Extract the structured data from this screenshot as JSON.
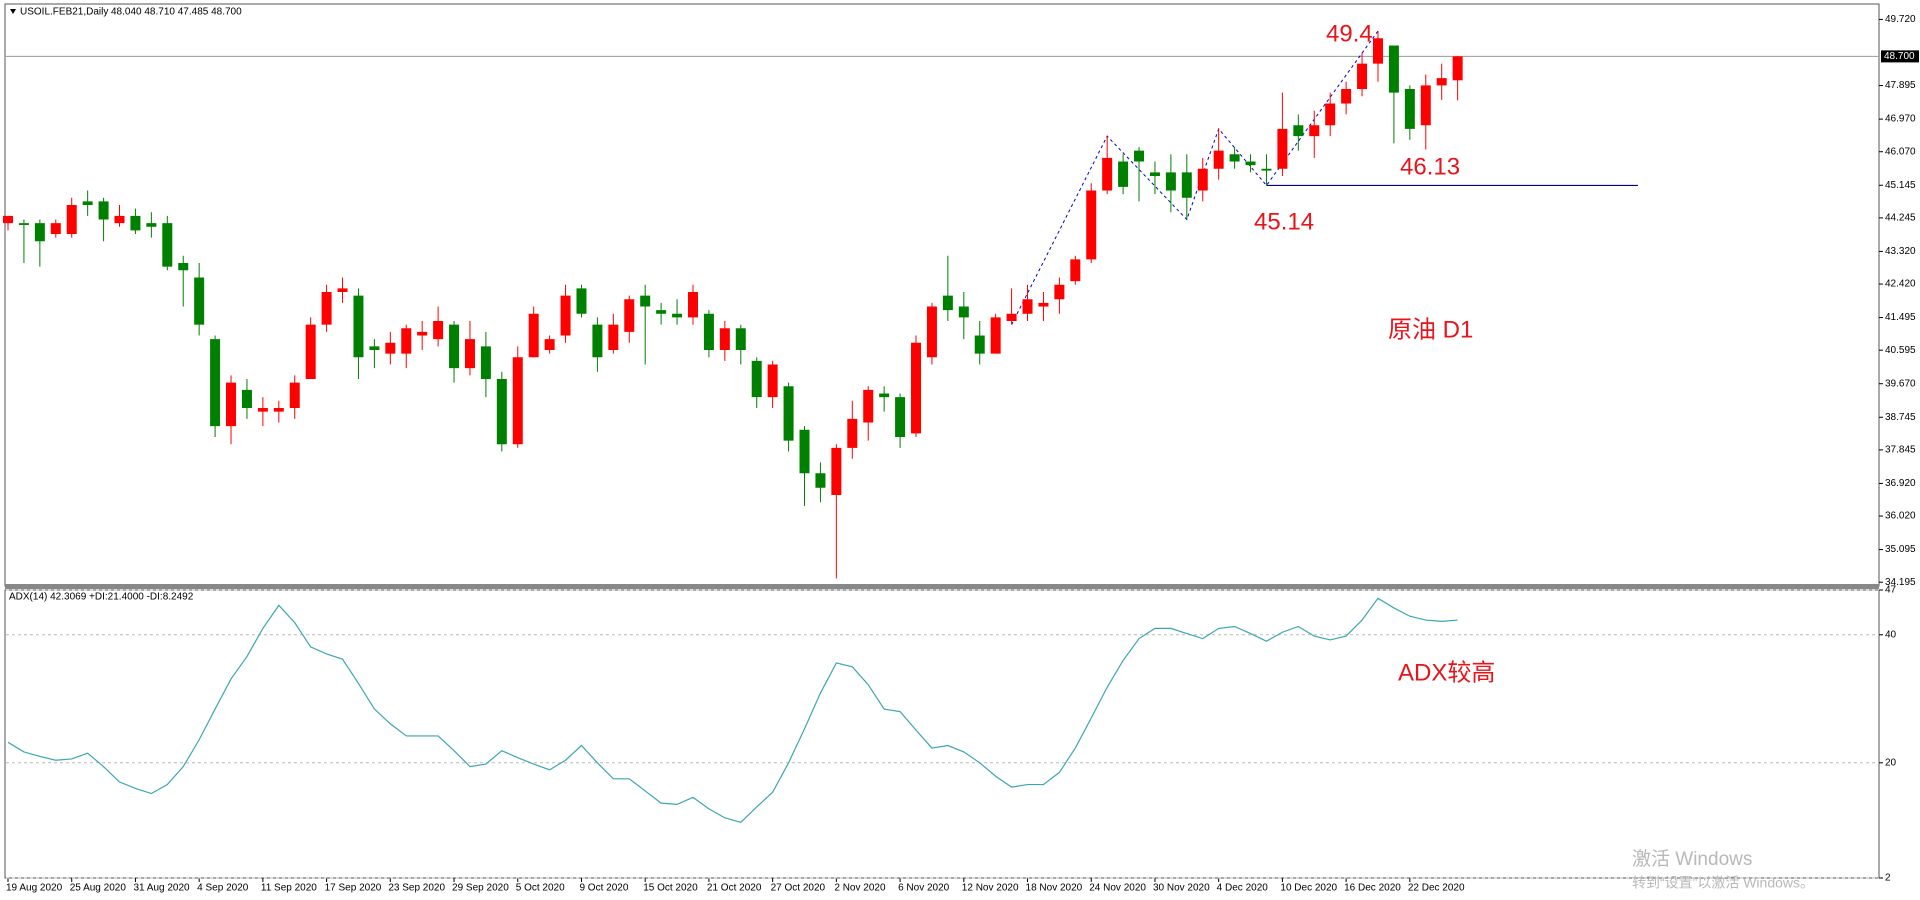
{
  "chart_data": [
    {
      "type": "candlestick",
      "title": "USOIL.FEB21,Daily",
      "ohlc_text": "48.040 48.710 47.485 48.700",
      "up_color": "#ff0000",
      "down_color": "#008000",
      "categories": [
        "19 Aug 2020",
        null,
        null,
        null,
        "25 Aug 2020",
        null,
        null,
        null,
        "31 Aug 2020",
        null,
        null,
        null,
        "4 Sep 2020",
        null,
        null,
        null,
        "11 Sep 2020",
        null,
        null,
        null,
        "17 Sep 2020",
        null,
        null,
        null,
        "23 Sep 2020",
        null,
        null,
        null,
        "29 Sep 2020",
        null,
        null,
        null,
        "5 Oct 2020",
        null,
        null,
        null,
        "9 Oct 2020",
        null,
        null,
        null,
        "15 Oct 2020",
        null,
        null,
        null,
        "21 Oct 2020",
        null,
        null,
        null,
        "27 Oct 2020",
        null,
        null,
        null,
        "2 Nov 2020",
        null,
        null,
        null,
        "6 Nov 2020",
        null,
        null,
        null,
        "12 Nov 2020",
        null,
        null,
        null,
        "18 Nov 2020",
        null,
        null,
        null,
        "24 Nov 2020",
        null,
        null,
        null,
        "30 Nov 2020",
        null,
        null,
        null,
        "4 Dec 2020",
        null,
        null,
        null,
        "10 Dec 2020",
        null,
        null,
        null,
        "16 Dec 2020",
        null,
        null,
        null,
        "22 Dec 2020",
        null,
        null,
        null
      ],
      "open": [
        44.1,
        44.1,
        44.1,
        43.8,
        43.8,
        44.7,
        44.7,
        44.1,
        44.3,
        44.1,
        44.1,
        43.0,
        42.6,
        40.9,
        38.5,
        39.5,
        38.9,
        38.9,
        39.0,
        39.8,
        41.3,
        42.2,
        42.1,
        40.7,
        40.5,
        40.5,
        41.0,
        40.9,
        41.3,
        40.1,
        40.7,
        39.8,
        38.0,
        40.4,
        40.6,
        41.0,
        42.3,
        41.3,
        40.6,
        41.1,
        42.1,
        41.7,
        41.6,
        41.5,
        41.6,
        40.6,
        41.2,
        40.3,
        39.3,
        39.6,
        38.4,
        37.2,
        36.6,
        37.9,
        38.6,
        39.4,
        39.3,
        38.3,
        40.4,
        42.1,
        41.8,
        41.0,
        40.5,
        41.4,
        41.6,
        41.8,
        42.0,
        42.5,
        43.1,
        45.0,
        45.8,
        46.1,
        45.5,
        45.5,
        45.5,
        45.0,
        45.6,
        46.0,
        45.8,
        45.6,
        45.6,
        46.8,
        46.5,
        46.8,
        47.4,
        47.8,
        48.5,
        49.0,
        47.8,
        46.8,
        47.9,
        48.04
      ],
      "high": [
        44.3,
        44.2,
        44.2,
        44.2,
        44.8,
        45.0,
        44.8,
        44.6,
        44.5,
        44.4,
        44.3,
        43.2,
        43.0,
        41.0,
        39.9,
        39.8,
        39.3,
        39.2,
        39.9,
        41.5,
        42.4,
        42.6,
        42.3,
        40.9,
        41.1,
        41.3,
        41.4,
        41.8,
        41.4,
        41.4,
        41.1,
        40.0,
        40.7,
        41.8,
        41.0,
        42.4,
        42.4,
        41.5,
        41.6,
        42.1,
        42.4,
        41.9,
        42.0,
        42.4,
        41.7,
        41.4,
        41.3,
        40.4,
        40.3,
        39.7,
        38.5,
        37.5,
        38.0,
        39.2,
        39.6,
        39.6,
        39.4,
        41.0,
        41.9,
        43.2,
        42.2,
        41.4,
        41.6,
        42.3,
        42.4,
        42.2,
        42.6,
        43.2,
        45.2,
        46.5,
        46.0,
        46.2,
        45.8,
        46.0,
        46.0,
        45.9,
        46.7,
        46.2,
        46.0,
        46.0,
        47.7,
        47.1,
        47.2,
        47.7,
        48.0,
        48.8,
        49.4,
        49.0,
        47.9,
        48.2,
        48.5,
        48.71
      ],
      "low": [
        43.9,
        43.0,
        42.9,
        43.7,
        43.7,
        44.3,
        43.6,
        44.0,
        43.8,
        43.7,
        42.8,
        41.8,
        41.0,
        38.2,
        38.0,
        38.7,
        38.5,
        38.6,
        38.7,
        39.8,
        41.1,
        41.9,
        39.8,
        40.1,
        40.2,
        40.1,
        40.6,
        40.7,
        39.7,
        39.9,
        39.3,
        37.8,
        37.9,
        40.4,
        40.5,
        40.8,
        41.5,
        40.0,
        40.5,
        40.8,
        40.2,
        41.3,
        41.3,
        41.3,
        40.4,
        40.3,
        40.2,
        39.0,
        39.0,
        37.8,
        36.3,
        36.4,
        34.3,
        37.6,
        38.1,
        38.9,
        37.9,
        38.2,
        40.2,
        41.4,
        40.9,
        40.2,
        40.5,
        41.3,
        41.4,
        41.4,
        41.6,
        42.4,
        43.0,
        44.9,
        44.9,
        44.7,
        44.9,
        44.4,
        44.2,
        44.7,
        45.3,
        45.6,
        45.5,
        45.14,
        45.4,
        46.1,
        45.9,
        46.5,
        47.1,
        47.6,
        48.0,
        46.3,
        46.4,
        46.13,
        47.5,
        47.485
      ],
      "close": [
        44.3,
        44.05,
        43.6,
        44.1,
        44.6,
        44.6,
        44.2,
        44.3,
        43.9,
        44.0,
        42.9,
        42.8,
        41.3,
        38.5,
        39.7,
        39.0,
        39.0,
        39.0,
        39.7,
        41.3,
        42.2,
        42.3,
        40.4,
        40.6,
        40.8,
        41.2,
        41.1,
        41.4,
        40.1,
        40.9,
        39.8,
        38.0,
        40.4,
        41.6,
        40.9,
        42.1,
        41.6,
        40.4,
        41.3,
        42.0,
        41.8,
        41.6,
        41.5,
        42.2,
        40.6,
        41.2,
        40.6,
        39.3,
        40.2,
        38.1,
        37.2,
        36.8,
        37.9,
        38.7,
        39.5,
        39.3,
        38.2,
        40.8,
        41.8,
        41.7,
        41.5,
        40.5,
        41.5,
        41.6,
        42.0,
        41.9,
        42.4,
        43.1,
        45.0,
        45.9,
        45.1,
        45.8,
        45.4,
        45.0,
        44.8,
        45.6,
        46.1,
        45.8,
        45.7,
        45.55,
        46.7,
        46.5,
        46.8,
        47.4,
        47.8,
        48.5,
        49.2,
        47.7,
        46.7,
        47.9,
        48.1,
        48.7
      ],
      "ylim": [
        34.09,
        50.09
      ],
      "yticks": [
        {
          "value": 49.72,
          "label": "49.720"
        },
        {
          "value": 47.895,
          "label": "47.895"
        },
        {
          "value": 46.97,
          "label": "46.970"
        },
        {
          "value": 46.07,
          "label": "46.070"
        },
        {
          "value": 45.145,
          "label": "45.145"
        },
        {
          "value": 44.245,
          "label": "44.245"
        },
        {
          "value": 43.32,
          "label": "43.320"
        },
        {
          "value": 42.42,
          "label": "42.420"
        },
        {
          "value": 41.495,
          "label": "41.495"
        },
        {
          "value": 40.595,
          "label": "40.595"
        },
        {
          "value": 39.67,
          "label": "39.670"
        },
        {
          "value": 38.745,
          "label": "38.745"
        },
        {
          "value": 37.845,
          "label": "37.845"
        },
        {
          "value": 36.92,
          "label": "36.920"
        },
        {
          "value": 36.02,
          "label": "36.020"
        },
        {
          "value": 35.095,
          "label": "35.095"
        },
        {
          "value": 34.195,
          "label": "34.195"
        }
      ],
      "price_line": {
        "value": 48.7,
        "label": "48.700"
      },
      "support_line": 45.14,
      "zigzag": {
        "color": "#0000cc",
        "x": [
          63,
          69,
          74,
          76,
          79,
          86
        ],
        "values": [
          41.3,
          46.5,
          44.2,
          46.7,
          45.14,
          49.4
        ]
      },
      "annotations": [
        "49.4",
        "46.13",
        "45.14",
        "原油 D1"
      ]
    },
    {
      "type": "line",
      "title": "ADX(14) 42.3069 +DI:21.4000 -DI:8.2492",
      "series": [
        {
          "color": "#3aa6b4",
          "values": [
            23.2,
            21.7,
            21.0,
            20.4,
            20.6,
            21.5,
            19.4,
            17.0,
            16.0,
            15.2,
            16.6,
            19.4,
            23.6,
            28.4,
            33.1,
            36.6,
            41.0,
            44.6,
            41.9,
            38.1,
            37.0,
            36.2,
            32.4,
            28.4,
            26.1,
            24.2,
            24.2,
            24.2,
            21.9,
            19.4,
            19.8,
            21.9,
            20.8,
            19.8,
            18.9,
            20.4,
            22.7,
            20.0,
            17.5,
            17.5,
            15.6,
            13.7,
            13.5,
            14.6,
            12.8,
            11.4,
            10.7,
            13.1,
            15.4,
            20.0,
            25.3,
            30.9,
            35.6,
            35.0,
            32.2,
            28.4,
            28.0,
            25.1,
            22.3,
            22.7,
            21.7,
            20.0,
            17.9,
            16.2,
            16.6,
            16.6,
            18.5,
            22.3,
            27.0,
            31.8,
            36.0,
            39.4,
            41.0,
            41.0,
            40.2,
            39.4,
            41.0,
            41.3,
            40.2,
            39.0,
            40.4,
            41.3,
            39.8,
            39.2,
            39.8,
            42.3,
            45.7,
            44.2,
            42.9,
            42.3,
            42.1,
            42.3
          ]
        }
      ],
      "ylim": [
        2,
        47
      ],
      "yticks": [
        2,
        20,
        40,
        47
      ],
      "grid": true,
      "annotations": [
        "ADX较高"
      ]
    }
  ],
  "watermark": [
    "激活 Windows",
    "转到“设置”以激活 Windows。"
  ]
}
